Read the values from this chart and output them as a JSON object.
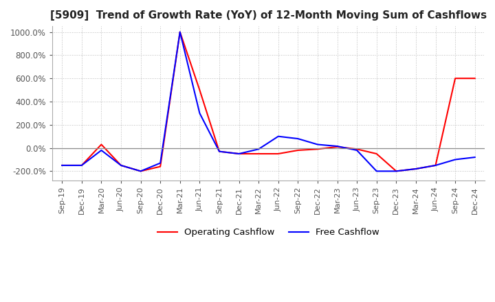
{
  "title": "[5909]  Trend of Growth Rate (YoY) of 12-Month Moving Sum of Cashflows",
  "title_fontsize": 11,
  "ylim": [
    -280,
    1050
  ],
  "yticks": [
    -200,
    0,
    200,
    400,
    600,
    800,
    1000
  ],
  "ytick_labels": [
    "-200.0%",
    "0.0%",
    "200.0%",
    "400.0%",
    "600.0%",
    "800.0%",
    "1000.0%"
  ],
  "background_color": "#ffffff",
  "grid_color": "#bbbbbb",
  "grid_linestyle": "dotted",
  "operating_color": "#ff0000",
  "free_color": "#0000ff",
  "legend_labels": [
    "Operating Cashflow",
    "Free Cashflow"
  ],
  "x_labels": [
    "Sep-19",
    "Dec-19",
    "Mar-20",
    "Jun-20",
    "Sep-20",
    "Dec-20",
    "Mar-21",
    "Jun-21",
    "Sep-21",
    "Dec-21",
    "Mar-22",
    "Jun-22",
    "Sep-22",
    "Dec-22",
    "Mar-23",
    "Jun-23",
    "Sep-23",
    "Dec-23",
    "Mar-24",
    "Jun-24",
    "Sep-24",
    "Dec-24"
  ],
  "operating_cashflow": [
    -150,
    -150,
    30,
    -150,
    -200,
    -160,
    1000,
    500,
    -30,
    -50,
    -50,
    -50,
    -20,
    -10,
    10,
    -10,
    -50,
    -200,
    -180,
    -150,
    600,
    600
  ],
  "free_cashflow": [
    -150,
    -150,
    -20,
    -150,
    -200,
    -130,
    1000,
    300,
    -30,
    -50,
    -10,
    100,
    80,
    30,
    15,
    -20,
    -200,
    -200,
    -180,
    -150,
    -100,
    -80
  ]
}
